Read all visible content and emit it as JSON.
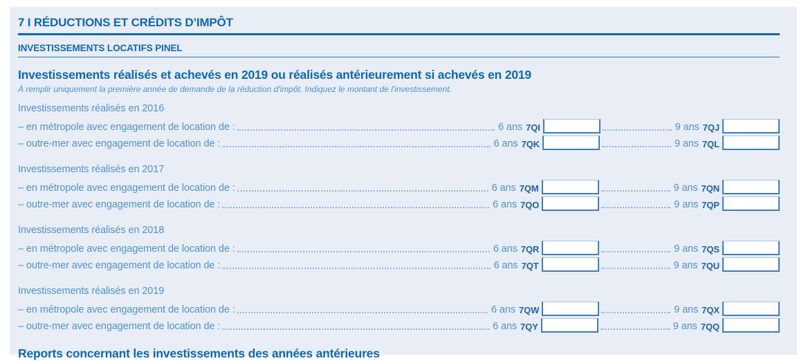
{
  "page": {
    "section_title": "7 I RÉDUCTIONS ET CRÉDITS D’IMPÔT",
    "subsection_title": "INVESTISSEMENTS LOCATIFS PINEL",
    "block_title": "Investissements réalisés et achevés en 2019 ou réalisés antérieurement si achevés en 2019",
    "block_note": "À remplir uniquement la première année de demande de la réduction d'impôt. Indiquez le montant de l'investissement.",
    "next_section_title": "Reports concernant les investissements des années antérieures"
  },
  "durations": {
    "six": "6 ans",
    "nine": "9 ans"
  },
  "groups": [
    {
      "label": "Investissements réalisés en 2016",
      "rows": [
        {
          "label": "– en métropole avec engagement de location de :",
          "code6": "7QI",
          "value6": "",
          "code9": "7QJ",
          "value9": ""
        },
        {
          "label": "– outre-mer avec engagement de location de :",
          "code6": "7QK",
          "value6": "",
          "code9": "7QL",
          "value9": ""
        }
      ]
    },
    {
      "label": "Investissements réalisés en 2017",
      "rows": [
        {
          "label": "– en métropole avec engagement de location de :",
          "code6": "7QM",
          "value6": "",
          "code9": "7QN",
          "value9": ""
        },
        {
          "label": "– outre-mer avec engagement de location de :",
          "code6": "7QO",
          "value6": "",
          "code9": "7QP",
          "value9": ""
        }
      ]
    },
    {
      "label": "Investissements réalisés en 2018",
      "rows": [
        {
          "label": "– en métropole avec engagement de location de :",
          "code6": "7QR",
          "value6": "",
          "code9": "7QS",
          "value9": ""
        },
        {
          "label": "– outre-mer avec engagement de location de :",
          "code6": "7QT",
          "value6": "",
          "code9": "7QU",
          "value9": ""
        }
      ]
    },
    {
      "label": "Investissements réalisés en 2019",
      "rows": [
        {
          "label": "– en métropole avec engagement de location de :",
          "code6": "7QW",
          "value6": "",
          "code9": "7QX",
          "value9": ""
        },
        {
          "label": "– outre-mer avec engagement de location de :",
          "code6": "7QY",
          "value6": "",
          "code9": "7QQ",
          "value9": ""
        }
      ]
    }
  ],
  "colors": {
    "header_blue": "#0f68b2",
    "body_blue": "#4f93cb",
    "code_blue": "#1c63ad",
    "panel_background": "#e9edf6",
    "box_border": "#3f7cb9",
    "leader_dots": "#8fb5dc"
  }
}
